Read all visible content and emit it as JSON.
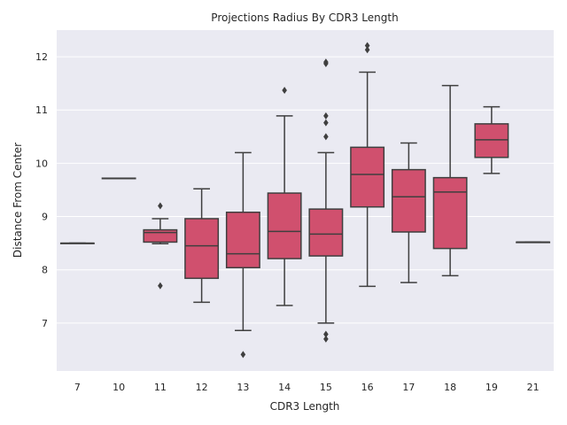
{
  "chart_data": {
    "type": "box",
    "title": "Projections Radius By CDR3 Length",
    "xlabel": "CDR3 Length",
    "ylabel": "Distance From Center",
    "ylim": [
      6.1,
      12.5
    ],
    "yticks": [
      7,
      8,
      9,
      10,
      11,
      12
    ],
    "grid": true,
    "colors": {
      "box": "#d0506e",
      "line": "#3f3f3f",
      "background": "#eaeaf2",
      "grid": "#ffffff"
    },
    "categories": [
      "7",
      "10",
      "11",
      "12",
      "13",
      "14",
      "15",
      "16",
      "17",
      "18",
      "19",
      "21"
    ],
    "boxes": [
      {
        "category": "7",
        "whislo": 8.5,
        "q1": 8.5,
        "med": 8.5,
        "q3": 8.5,
        "whishi": 8.5,
        "fliers": []
      },
      {
        "category": "10",
        "whislo": 9.72,
        "q1": 9.72,
        "med": 9.72,
        "q3": 9.72,
        "whishi": 9.72,
        "fliers": []
      },
      {
        "category": "11",
        "whislo": 8.49,
        "q1": 8.52,
        "med": 8.7,
        "q3": 8.75,
        "whishi": 8.96,
        "fliers": [
          9.2,
          7.7
        ]
      },
      {
        "category": "12",
        "whislo": 7.39,
        "q1": 7.84,
        "med": 8.45,
        "q3": 8.96,
        "whishi": 9.52,
        "fliers": []
      },
      {
        "category": "13",
        "whislo": 6.86,
        "q1": 8.04,
        "med": 8.3,
        "q3": 9.08,
        "whishi": 10.2,
        "fliers": [
          6.41
        ]
      },
      {
        "category": "14",
        "whislo": 7.33,
        "q1": 8.21,
        "med": 8.72,
        "q3": 9.44,
        "whishi": 10.89,
        "fliers": [
          11.37
        ]
      },
      {
        "category": "15",
        "whislo": 7.0,
        "q1": 8.26,
        "med": 8.67,
        "q3": 9.14,
        "whishi": 10.2,
        "fliers": [
          11.87,
          11.9,
          10.89,
          10.76,
          10.5,
          6.79,
          6.7
        ]
      },
      {
        "category": "16",
        "whislo": 7.69,
        "q1": 9.18,
        "med": 9.79,
        "q3": 10.3,
        "whishi": 11.71,
        "fliers": [
          12.21,
          12.13
        ]
      },
      {
        "category": "17",
        "whislo": 7.76,
        "q1": 8.71,
        "med": 9.37,
        "q3": 9.88,
        "whishi": 10.38,
        "fliers": []
      },
      {
        "category": "18",
        "whislo": 7.89,
        "q1": 8.4,
        "med": 9.46,
        "q3": 9.73,
        "whishi": 11.46,
        "fliers": []
      },
      {
        "category": "19",
        "whislo": 9.81,
        "q1": 10.11,
        "med": 10.44,
        "q3": 10.74,
        "whishi": 11.06,
        "fliers": []
      },
      {
        "category": "21",
        "whislo": 8.52,
        "q1": 8.52,
        "med": 8.52,
        "q3": 8.52,
        "whishi": 8.52,
        "fliers": []
      }
    ]
  }
}
